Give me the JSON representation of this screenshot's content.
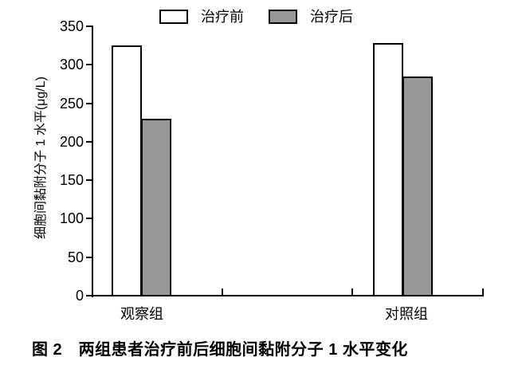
{
  "figure": {
    "caption": "图 2　两组患者治疗前后细胞间黏附分子 1 水平变化"
  },
  "chart_data": {
    "type": "bar",
    "title": "图 2　两组患者治疗前后细胞间黏附分子 1 水平变化",
    "ylabel": "细胞间黏附分子 1 水平(μg/L)",
    "xlabel": "",
    "categories": [
      "观察组",
      "对照组"
    ],
    "series": [
      {
        "name": "治疗前",
        "fill": "#ffffff",
        "values": [
          325,
          328
        ]
      },
      {
        "name": "治疗后",
        "fill": "#989898",
        "values": [
          230,
          285
        ]
      }
    ],
    "ylim": [
      0,
      350
    ],
    "yticks": [
      0,
      50,
      100,
      150,
      200,
      250,
      300,
      350
    ],
    "legend_position": "top",
    "grid": false,
    "bar_border_color": "#000000",
    "axis_color": "#000000"
  }
}
